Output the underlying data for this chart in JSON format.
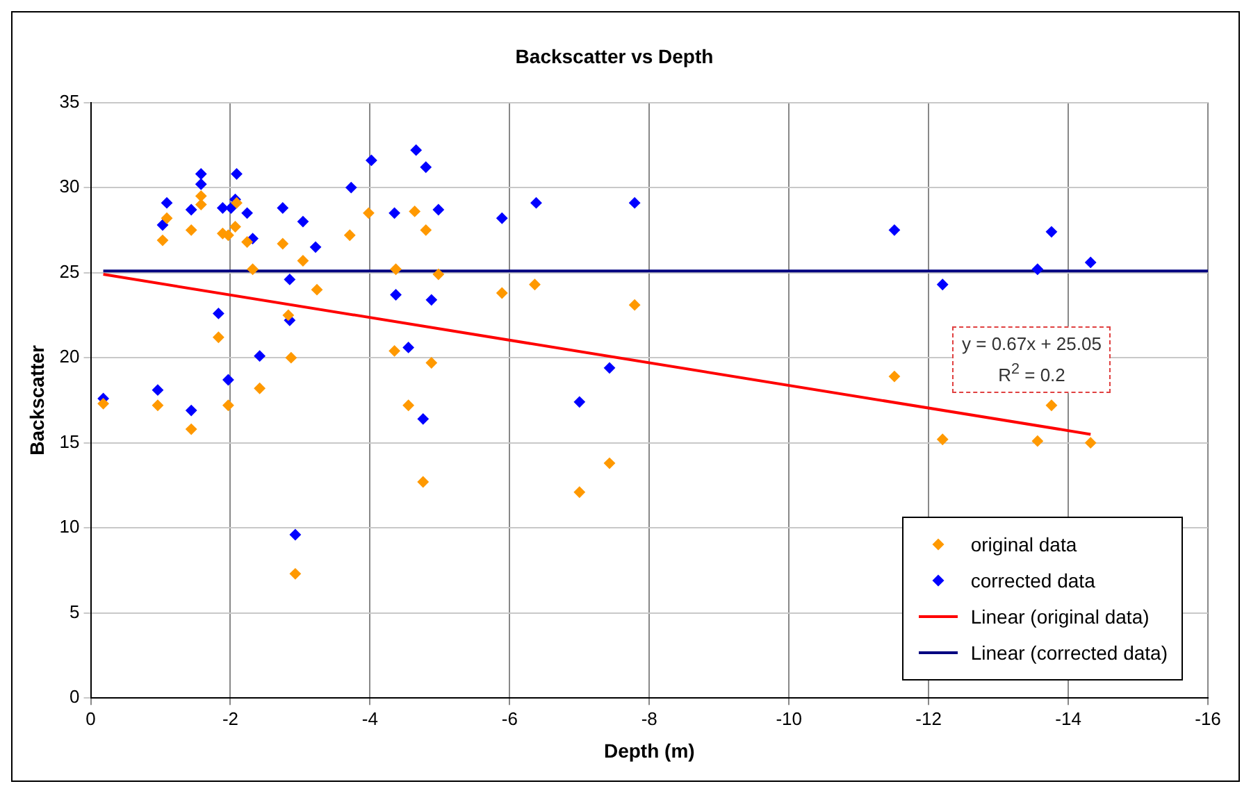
{
  "chart_data": {
    "type": "scatter",
    "title": "Backscatter vs Depth",
    "xlabel": "Depth (m)",
    "ylabel": "Backscatter",
    "xlim": [
      0,
      -16
    ],
    "xticks": [
      0,
      -2,
      -4,
      -6,
      -8,
      -10,
      -12,
      -14,
      -16
    ],
    "ylim": [
      0,
      35
    ],
    "yticks": [
      0,
      5,
      10,
      15,
      20,
      25,
      30,
      35
    ],
    "grid": true,
    "legend": "bottom right",
    "marker": "diamond",
    "annotations": [
      "y = 0.67x + 25.05",
      "R$^{2}$ = 0.2"
    ],
    "series": [
      {
        "name": "original data",
        "color": "#ff9900",
        "x": [
          -0.18,
          -0.96,
          -1.03,
          -1.09,
          -1.44,
          -1.44,
          -1.58,
          -1.58,
          -1.83,
          -1.89,
          -1.97,
          -1.97,
          -2.07,
          -2.09,
          -2.24,
          -2.32,
          -2.42,
          -2.75,
          -2.83,
          -2.87,
          -2.93,
          -3.04,
          -3.24,
          -3.71,
          -3.98,
          -4.35,
          -4.37,
          -4.55,
          -4.64,
          -4.76,
          -4.8,
          -4.88,
          -4.98,
          -5.89,
          -6.36,
          -7.0,
          -7.43,
          -7.79,
          -11.51,
          -12.2,
          -13.56,
          -13.76,
          -14.32
        ],
        "values": [
          17.3,
          17.2,
          26.9,
          28.2,
          27.5,
          15.8,
          29.5,
          29.0,
          21.2,
          27.3,
          27.2,
          17.2,
          27.7,
          29.1,
          26.8,
          25.2,
          18.2,
          26.7,
          22.5,
          20.0,
          7.3,
          25.7,
          24.0,
          27.2,
          28.5,
          20.4,
          25.2,
          17.2,
          28.6,
          12.7,
          27.5,
          19.7,
          24.9,
          23.8,
          24.3,
          12.1,
          13.8,
          23.1,
          18.9,
          15.2,
          15.1,
          17.2,
          15.0
        ]
      },
      {
        "name": "corrected data",
        "color": "#0000ff",
        "x": [
          -0.18,
          -0.96,
          -1.03,
          -1.09,
          -1.44,
          -1.44,
          -1.58,
          -1.58,
          -1.83,
          -1.89,
          -1.97,
          -2.01,
          -2.07,
          -2.09,
          -2.24,
          -2.32,
          -2.42,
          -2.75,
          -2.85,
          -2.85,
          -2.93,
          -3.04,
          -3.22,
          -3.73,
          -4.02,
          -4.35,
          -4.37,
          -4.55,
          -4.66,
          -4.76,
          -4.8,
          -4.88,
          -4.98,
          -5.89,
          -6.38,
          -7.0,
          -7.43,
          -7.79,
          -11.51,
          -12.2,
          -13.56,
          -13.76,
          -14.32
        ],
        "values": [
          17.6,
          18.1,
          27.8,
          29.1,
          16.9,
          28.7,
          30.8,
          30.2,
          22.6,
          28.8,
          18.7,
          28.8,
          29.3,
          30.8,
          28.5,
          27.0,
          20.1,
          28.8,
          22.2,
          24.6,
          9.6,
          28.0,
          26.5,
          30.0,
          31.6,
          28.5,
          23.7,
          20.6,
          32.2,
          16.4,
          31.2,
          23.4,
          28.7,
          28.2,
          29.1,
          17.4,
          19.4,
          29.1,
          27.5,
          24.3,
          25.2,
          27.4,
          25.6
        ]
      },
      {
        "name": "Linear (original data)",
        "type": "line",
        "color": "#ff0000",
        "marker": "none",
        "line_style": "solid",
        "x": [
          -0.18,
          -14.32
        ],
        "values": [
          24.9,
          15.5
        ]
      },
      {
        "name": "Linear (corrected data)",
        "type": "line",
        "color": "#000080",
        "marker": "none",
        "line_style": "solid",
        "x": [
          -0.18,
          -16
        ],
        "values": [
          25.1,
          25.1
        ]
      }
    ]
  }
}
